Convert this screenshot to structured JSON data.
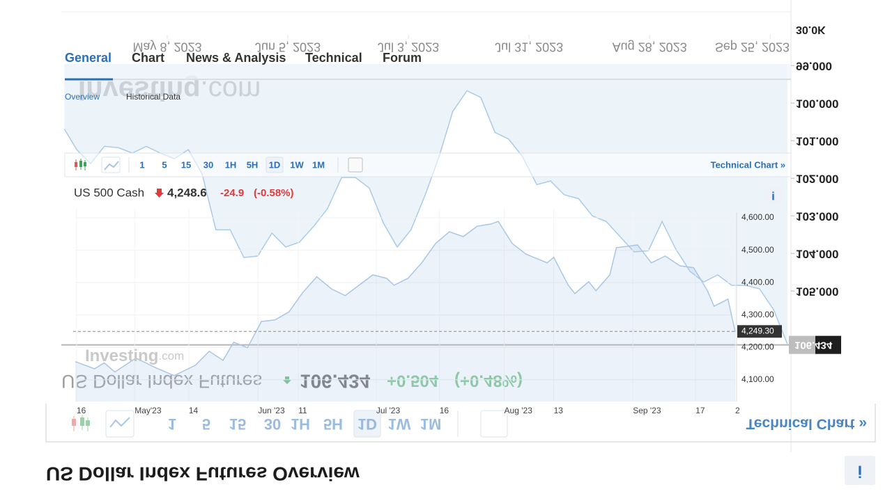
{
  "back_widget": {
    "title": "US Dollar Index Futures Overview",
    "instrument": "US Dollar Index Futures",
    "price": "106.434",
    "change": "+0.504",
    "change_pct": "(+0.48%)",
    "watermark_brand": "Investing",
    "watermark_suffix": ".com",
    "timeframes": [
      "1",
      "5",
      "15",
      "30",
      "1H",
      "5H",
      "1D",
      "1W",
      "1M"
    ],
    "technical_link": "Technical Chart »",
    "info": "i",
    "chart": {
      "type": "area",
      "color": "#a9cbe8",
      "reversed": true,
      "volume_label": "30.0K",
      "x": [
        -23.9,
        -21.0,
        -17.8,
        -14.6,
        -11.3,
        -8.1,
        -4.9,
        -1.6,
        1.6,
        4.9,
        8.1,
        11.3,
        14.6,
        17.8,
        21.0,
        24.3,
        27.5,
        30.7,
        34.0,
        37.2,
        40.5,
        43.7,
        46.9,
        50.2,
        53.4,
        56.6,
        59.9,
        63.1,
        66.3,
        69.6,
        72.8,
        76.1,
        79.3,
        82.5,
        85.8,
        89.0,
        92.2,
        95.5,
        98.7,
        101.9,
        105.2,
        108.4,
        111.7,
        114.9,
        118.1,
        121.4,
        124.6,
        127.8,
        131.1,
        134.3,
        137.5,
        140.8,
        144.0
      ],
      "values": [
        100.69,
        101.24,
        101.61,
        101.15,
        101.19,
        101.33,
        101.15,
        101.33,
        101.48,
        101.24,
        101.89,
        103.37,
        103.37,
        104.11,
        104.07,
        103.46,
        103.83,
        103.7,
        103.28,
        102.81,
        101.98,
        101.98,
        102.26,
        103.19,
        103.83,
        103.37,
        102.44,
        101.43,
        100.22,
        99.67,
        99.85,
        100.78,
        100.96,
        101.43,
        102.17,
        102.07,
        102.44,
        102.54,
        103.0,
        103.15,
        103.56,
        103.96,
        103.93,
        103.15,
        103.89,
        104.48,
        104.76,
        104.57,
        104.85,
        104.85,
        104.94,
        105.5,
        106.41
      ],
      "xlim": [
        -23.95,
        144.82
      ],
      "ylim": [
        98.96,
        107.94
      ],
      "xticks": [
        {
          "value": 0,
          "label": "May 8, 2023"
        },
        {
          "value": 28,
          "label": "Jun 5, 2023"
        },
        {
          "value": 56,
          "label": "Jul 3, 2023"
        },
        {
          "value": 84,
          "label": "Jul 31, 2023"
        },
        {
          "value": 112,
          "label": "Aug 28, 2023"
        },
        {
          "value": 140,
          "label": "Sep 25, 2023"
        }
      ],
      "yticks": [
        {
          "value": 99,
          "label": "99.000"
        },
        {
          "value": 100,
          "label": "100.000"
        },
        {
          "value": 101,
          "label": "101.000"
        },
        {
          "value": 102,
          "label": "102.000"
        },
        {
          "value": 103,
          "label": "103.000"
        },
        {
          "value": 104,
          "label": "104.000"
        },
        {
          "value": 105,
          "label": "105.000"
        }
      ],
      "last_label": {
        "value": 106.434,
        "label": "106.434"
      }
    }
  },
  "front_widget": {
    "tabs": [
      "General",
      "Chart",
      "News & Analysis",
      "Technical",
      "Forum"
    ],
    "subtabs": [
      "Overview",
      "Historical Data"
    ],
    "timeframes": [
      "1",
      "5",
      "15",
      "30",
      "1H",
      "5H",
      "1D",
      "1W",
      "1M"
    ],
    "technical_link": "Technical Chart »",
    "instrument": "US 500 Cash",
    "price": "4,248.6",
    "change": "-24.9",
    "change_pct": "(-0.58%)",
    "watermark_brand": "Investing",
    "watermark_suffix": ".com",
    "info": "i",
    "chart": {
      "type": "area",
      "color": "#a9c6e4",
      "x": [
        0,
        2.9,
        4.4,
        6.0,
        9.2,
        12.0,
        15.0,
        18.2,
        20.3,
        22.4,
        24.0,
        26.1,
        28.2,
        30.3,
        32.4,
        34.5,
        36.6,
        38.8,
        40.9,
        43.0,
        45.1,
        47.2,
        48.3,
        50.4,
        52.5,
        54.6,
        56.7,
        58.8,
        60.9,
        63.0,
        64.1,
        66.2,
        68.3,
        71.5,
        72.5,
        74.7,
        75.7,
        77.8,
        78.9,
        81.0,
        82.0,
        85.2,
        87.3,
        89.4,
        91.6,
        93.7,
        95.8,
        96.8,
        98.9,
        100
      ],
      "values": [
        4156,
        4134,
        4152,
        4124,
        4167,
        4139,
        4113,
        4145,
        4188,
        4160,
        4216,
        4199,
        4280,
        4285,
        4310,
        4370,
        4418,
        4381,
        4360,
        4392,
        4424,
        4413,
        4392,
        4413,
        4461,
        4521,
        4557,
        4542,
        4574,
        4581,
        4589,
        4521,
        4488,
        4461,
        4478,
        4392,
        4366,
        4403,
        4375,
        4424,
        4508,
        4516,
        4461,
        4482,
        4452,
        4446,
        4375,
        4327,
        4349,
        4248
      ],
      "xlim": [
        0,
        100
      ],
      "ylim": [
        4033,
        4628
      ],
      "xticks": [
        {
          "value": 0.2,
          "label": "16"
        },
        {
          "value": 9,
          "label": "May'23"
        },
        {
          "value": 17.2,
          "label": "14"
        },
        {
          "value": 27.7,
          "label": "Jun '23"
        },
        {
          "value": 33.8,
          "label": "11"
        },
        {
          "value": 45.6,
          "label": "Jul '23"
        },
        {
          "value": 55.2,
          "label": "16"
        },
        {
          "value": 65,
          "label": "Aug '23"
        },
        {
          "value": 72.5,
          "label": "13"
        },
        {
          "value": 84.5,
          "label": "Sep '23"
        },
        {
          "value": 94,
          "label": "17"
        },
        {
          "value": 100,
          "label": "2"
        }
      ],
      "yticks": [
        {
          "value": 4600,
          "label": "4,600.00"
        },
        {
          "value": 4500,
          "label": "4,500.00"
        },
        {
          "value": 4400,
          "label": "4,400.00"
        },
        {
          "value": 4300,
          "label": "4,300.00"
        },
        {
          "value": 4200,
          "label": "4,200.00"
        },
        {
          "value": 4100,
          "label": "4,100.00"
        }
      ],
      "last_label": {
        "value": 4249.3,
        "label": "4,249.30"
      }
    }
  }
}
